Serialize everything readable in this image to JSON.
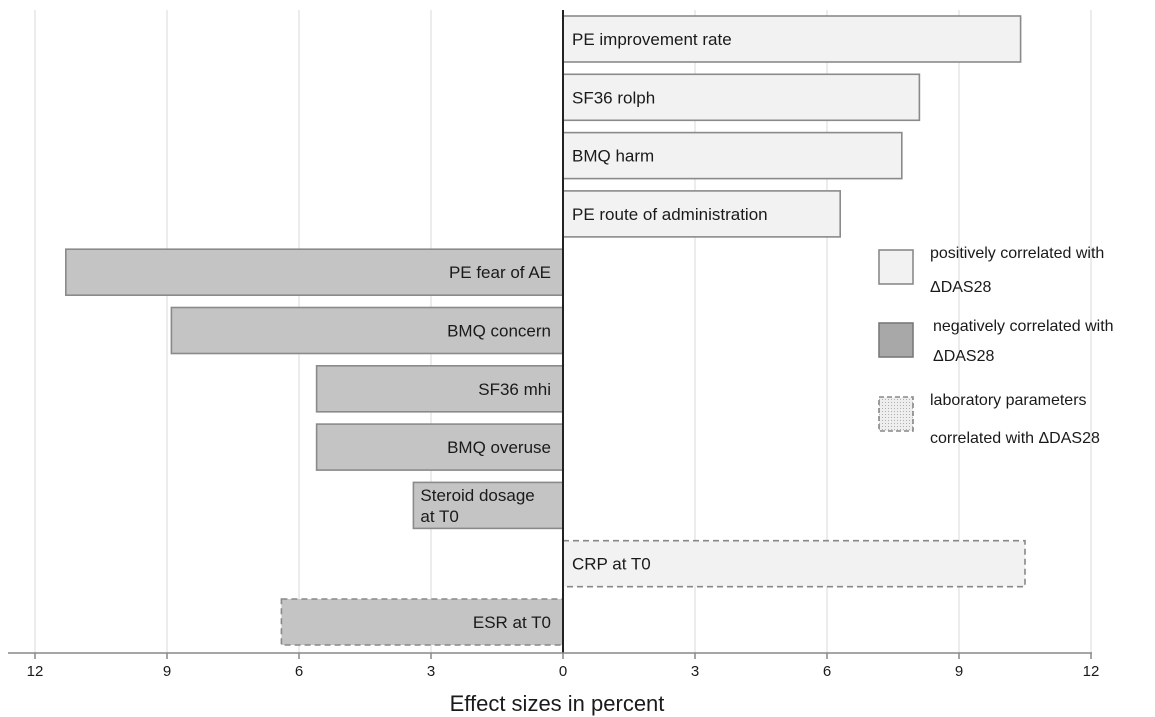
{
  "chart_data": {
    "type": "bar",
    "orientation": "horizontal",
    "xlabel": "Effect sizes in percent",
    "xlim": [
      -12,
      12
    ],
    "x_ticks": [
      -12,
      -9,
      -6,
      -3,
      0,
      3,
      6,
      9,
      12
    ],
    "x_tick_labels": [
      "12",
      "9",
      "6",
      "3",
      "0",
      "3",
      "6",
      "9",
      "12"
    ],
    "grid": "vertical",
    "legend_position": "right",
    "colors": {
      "positive": "#f2f2f2",
      "negative": "#c4c4c4",
      "border": "#8a8a8a",
      "laboratory_border": "#888888",
      "axis": "#222222",
      "grid": "#d9d9d9"
    },
    "bars": [
      {
        "label": [
          "PE improvement rate"
        ],
        "value": 10.4,
        "category": "positive"
      },
      {
        "label": [
          "SF36 rolph"
        ],
        "value": 8.1,
        "category": "positive"
      },
      {
        "label": [
          "BMQ harm"
        ],
        "value": 7.7,
        "category": "positive"
      },
      {
        "label": [
          "PE route of administration"
        ],
        "value": 6.3,
        "category": "positive"
      },
      {
        "label": [
          "PE fear of AE"
        ],
        "value": -11.3,
        "category": "negative"
      },
      {
        "label": [
          "BMQ concern"
        ],
        "value": -8.9,
        "category": "negative"
      },
      {
        "label": [
          "SF36 mhi"
        ],
        "value": -5.6,
        "category": "negative"
      },
      {
        "label": [
          "BMQ overuse"
        ],
        "value": -5.6,
        "category": "negative"
      },
      {
        "label": [
          "Steroid dosage",
          "at T0"
        ],
        "value": -3.4,
        "category": "negative"
      },
      {
        "label": [
          "CRP at T0"
        ],
        "value": 10.5,
        "category": "laboratory"
      },
      {
        "label": [
          "ESR at T0"
        ],
        "value": -6.4,
        "category": "laboratory"
      }
    ],
    "legend": [
      {
        "category": "positive",
        "lines": [
          "positively correlated with",
          "ΔDAS28"
        ]
      },
      {
        "category": "negative",
        "lines": [
          "negatively correlated with",
          "ΔDAS28"
        ]
      },
      {
        "category": "laboratory",
        "lines": [
          "laboratory parameters",
          "correlated with ΔDAS28"
        ]
      }
    ]
  }
}
